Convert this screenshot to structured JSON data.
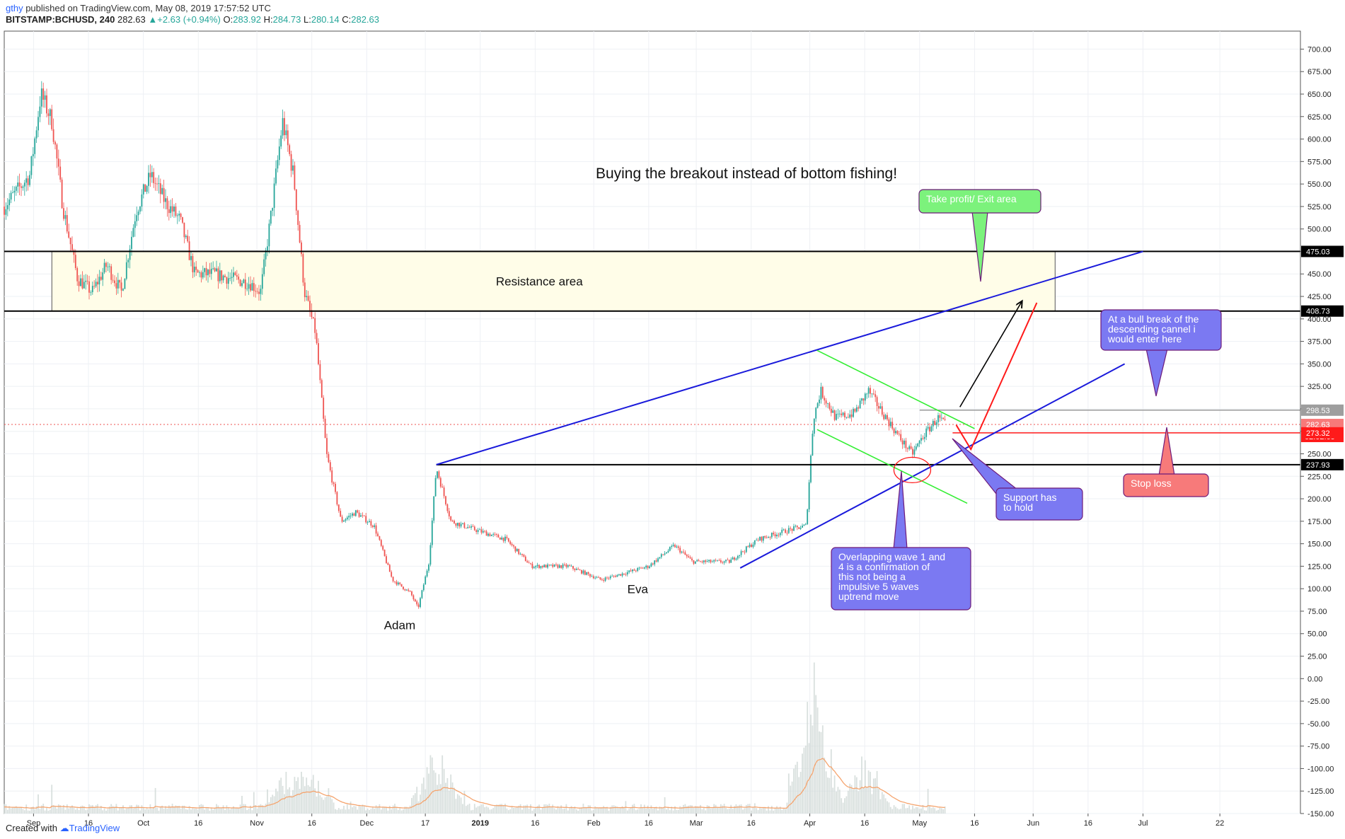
{
  "header": {
    "author": "gthy",
    "published_text": " published on TradingView.com, May 08, 2019 17:57:52 UTC",
    "symbol": "BITSTAMP:BCHUSD, 240",
    "last": "282.63",
    "change": "+2.63 (+0.94%)",
    "o_label": "O:",
    "o": "283.92",
    "h_label": "H:",
    "h": "284.73",
    "l_label": "L:",
    "l": "280.14",
    "c_label": "C:",
    "c": "282.63"
  },
  "footer": {
    "created_with": "Created with",
    "brand": "TradingView"
  },
  "colors": {
    "up": "#26a69a",
    "down": "#ef5350",
    "blue_line": "#1a1adb",
    "green_line": "#33ee33",
    "red_line": "#ff1a1a",
    "zone_fill": "#fffde8",
    "callout_purple": "#7b79f2",
    "callout_green": "#7cf27c",
    "callout_red": "#f77a7a",
    "volume_ma": "#f5a46e"
  },
  "chart_data": {
    "type": "candlestick",
    "title": "Buying the breakout instead of bottom fishing!",
    "ylim": [
      -150,
      720
    ],
    "y_ticks": [
      700,
      675,
      650,
      625,
      600,
      575,
      550,
      525,
      500,
      475,
      450,
      425,
      400,
      375,
      350,
      325,
      300,
      275,
      250,
      225,
      200,
      175,
      150,
      125,
      100,
      75,
      50,
      25,
      0,
      -25,
      -50,
      -75,
      -100,
      -125,
      -150
    ],
    "x_ticks": [
      "Sep",
      "16",
      "Oct",
      "16",
      "Nov",
      "16",
      "Dec",
      "17",
      "2019",
      "16",
      "Feb",
      "16",
      "Mar",
      "16",
      "Apr",
      "16",
      "May",
      "16",
      "Jun",
      "16",
      "Jul",
      "22"
    ],
    "price_series": [
      {
        "d": "2018-08-24",
        "p": 525
      },
      {
        "d": "2018-08-31",
        "p": 560
      },
      {
        "d": "2018-09-03",
        "p": 650
      },
      {
        "d": "2018-09-06",
        "p": 620
      },
      {
        "d": "2018-09-09",
        "p": 525
      },
      {
        "d": "2018-09-13",
        "p": 445
      },
      {
        "d": "2018-09-17",
        "p": 430
      },
      {
        "d": "2018-09-21",
        "p": 460
      },
      {
        "d": "2018-09-25",
        "p": 430
      },
      {
        "d": "2018-09-29",
        "p": 520
      },
      {
        "d": "2018-10-03",
        "p": 560
      },
      {
        "d": "2018-10-07",
        "p": 530
      },
      {
        "d": "2018-10-11",
        "p": 510
      },
      {
        "d": "2018-10-15",
        "p": 450
      },
      {
        "d": "2018-10-20",
        "p": 450
      },
      {
        "d": "2018-10-25",
        "p": 445
      },
      {
        "d": "2018-10-30",
        "p": 440
      },
      {
        "d": "2018-11-02",
        "p": 430
      },
      {
        "d": "2018-11-05",
        "p": 520
      },
      {
        "d": "2018-11-08",
        "p": 620
      },
      {
        "d": "2018-11-11",
        "p": 560
      },
      {
        "d": "2018-11-14",
        "p": 430
      },
      {
        "d": "2018-11-17",
        "p": 385
      },
      {
        "d": "2018-11-20",
        "p": 250
      },
      {
        "d": "2018-11-24",
        "p": 175
      },
      {
        "d": "2018-11-28",
        "p": 185
      },
      {
        "d": "2018-12-03",
        "p": 170
      },
      {
        "d": "2018-12-08",
        "p": 110
      },
      {
        "d": "2018-12-13",
        "p": 95
      },
      {
        "d": "2018-12-15",
        "p": 78
      },
      {
        "d": "2018-12-18",
        "p": 130
      },
      {
        "d": "2018-12-20",
        "p": 235
      },
      {
        "d": "2018-12-24",
        "p": 175
      },
      {
        "d": "2018-12-31",
        "p": 165
      },
      {
        "d": "2019-01-08",
        "p": 155
      },
      {
        "d": "2019-01-15",
        "p": 125
      },
      {
        "d": "2019-01-25",
        "p": 125
      },
      {
        "d": "2019-02-03",
        "p": 110
      },
      {
        "d": "2019-02-10",
        "p": 118
      },
      {
        "d": "2019-02-16",
        "p": 125
      },
      {
        "d": "2019-02-23",
        "p": 148
      },
      {
        "d": "2019-02-28",
        "p": 130
      },
      {
        "d": "2019-03-10",
        "p": 130
      },
      {
        "d": "2019-03-18",
        "p": 155
      },
      {
        "d": "2019-03-26",
        "p": 165
      },
      {
        "d": "2019-03-31",
        "p": 170
      },
      {
        "d": "2019-04-02",
        "p": 290
      },
      {
        "d": "2019-04-04",
        "p": 320
      },
      {
        "d": "2019-04-08",
        "p": 290
      },
      {
        "d": "2019-04-13",
        "p": 295
      },
      {
        "d": "2019-04-17",
        "p": 320
      },
      {
        "d": "2019-04-21",
        "p": 295
      },
      {
        "d": "2019-04-26",
        "p": 265
      },
      {
        "d": "2019-04-29",
        "p": 250
      },
      {
        "d": "2019-05-02",
        "p": 270
      },
      {
        "d": "2019-05-06",
        "p": 290
      },
      {
        "d": "2019-05-08",
        "p": 282.63
      }
    ],
    "price_labels": [
      {
        "value": 475.03,
        "text": "475.03"
      },
      {
        "value": 408.73,
        "text": "408.73"
      },
      {
        "value": 298.53,
        "text": "298.53"
      },
      {
        "value": 282.63,
        "text": "282.63",
        "countdown": "02:02:09"
      },
      {
        "value": 273.32,
        "text": "273.32"
      },
      {
        "value": 237.93,
        "text": "237.93"
      }
    ],
    "resistance_zone": {
      "from": "2018-09-06",
      "to": "2019-06-07",
      "low": 408.73,
      "high": 475.03,
      "label": "Resistance area"
    },
    "horizontal_lines": [
      {
        "value": 475.03,
        "color": "#000000"
      },
      {
        "value": 408.73,
        "color": "#000000"
      },
      {
        "value": 237.93,
        "color": "#000000",
        "from": "2018-12-20"
      },
      {
        "value": 298.53,
        "color": "#999999",
        "from": "2019-05-01"
      },
      {
        "value": 273.32,
        "color": "#ff1a1a",
        "from": "2019-05-10"
      }
    ],
    "trend_lines": [
      {
        "name": "upper-channel",
        "color": "#1a1adb",
        "from": {
          "d": "2018-12-20",
          "p": 237.9
        },
        "to": {
          "d": "2019-07-01",
          "p": 475
        }
      },
      {
        "name": "lower-channel",
        "color": "#1a1adb",
        "from": {
          "d": "2019-03-13",
          "p": 123
        },
        "to": {
          "d": "2019-06-26",
          "p": 350
        }
      },
      {
        "name": "descending-top",
        "color": "#33ee33",
        "from": {
          "d": "2019-04-03",
          "p": 365
        },
        "to": {
          "d": "2019-05-16",
          "p": 278
        }
      },
      {
        "name": "descending-bottom",
        "color": "#33ee33",
        "from": {
          "d": "2019-04-03",
          "p": 277
        },
        "to": {
          "d": "2019-05-14",
          "p": 195
        }
      }
    ],
    "annotations": [
      {
        "text": "Adam",
        "d": "2018-12-10",
        "p": 55
      },
      {
        "text": "Eva",
        "d": "2019-02-13",
        "p": 95
      }
    ],
    "callouts": [
      {
        "name": "take-profit",
        "lines": [
          "Take profit/ Exit area"
        ],
        "color": "#7cf27c"
      },
      {
        "name": "bull-break",
        "lines": [
          "At a bull break of the",
          "descending cannel i",
          "would enter here"
        ],
        "color": "#7b79f2"
      },
      {
        "name": "support",
        "lines": [
          "Support has",
          "to hold"
        ],
        "color": "#7b79f2"
      },
      {
        "name": "stop-loss",
        "lines": [
          "Stop loss"
        ],
        "color": "#f77a7a"
      },
      {
        "name": "overlap",
        "lines": [
          "Overlapping wave 1 and",
          "4 is a confirmation of",
          "this not being a",
          "impulsive 5 waves",
          "uptrend move"
        ],
        "color": "#7b79f2"
      }
    ]
  }
}
